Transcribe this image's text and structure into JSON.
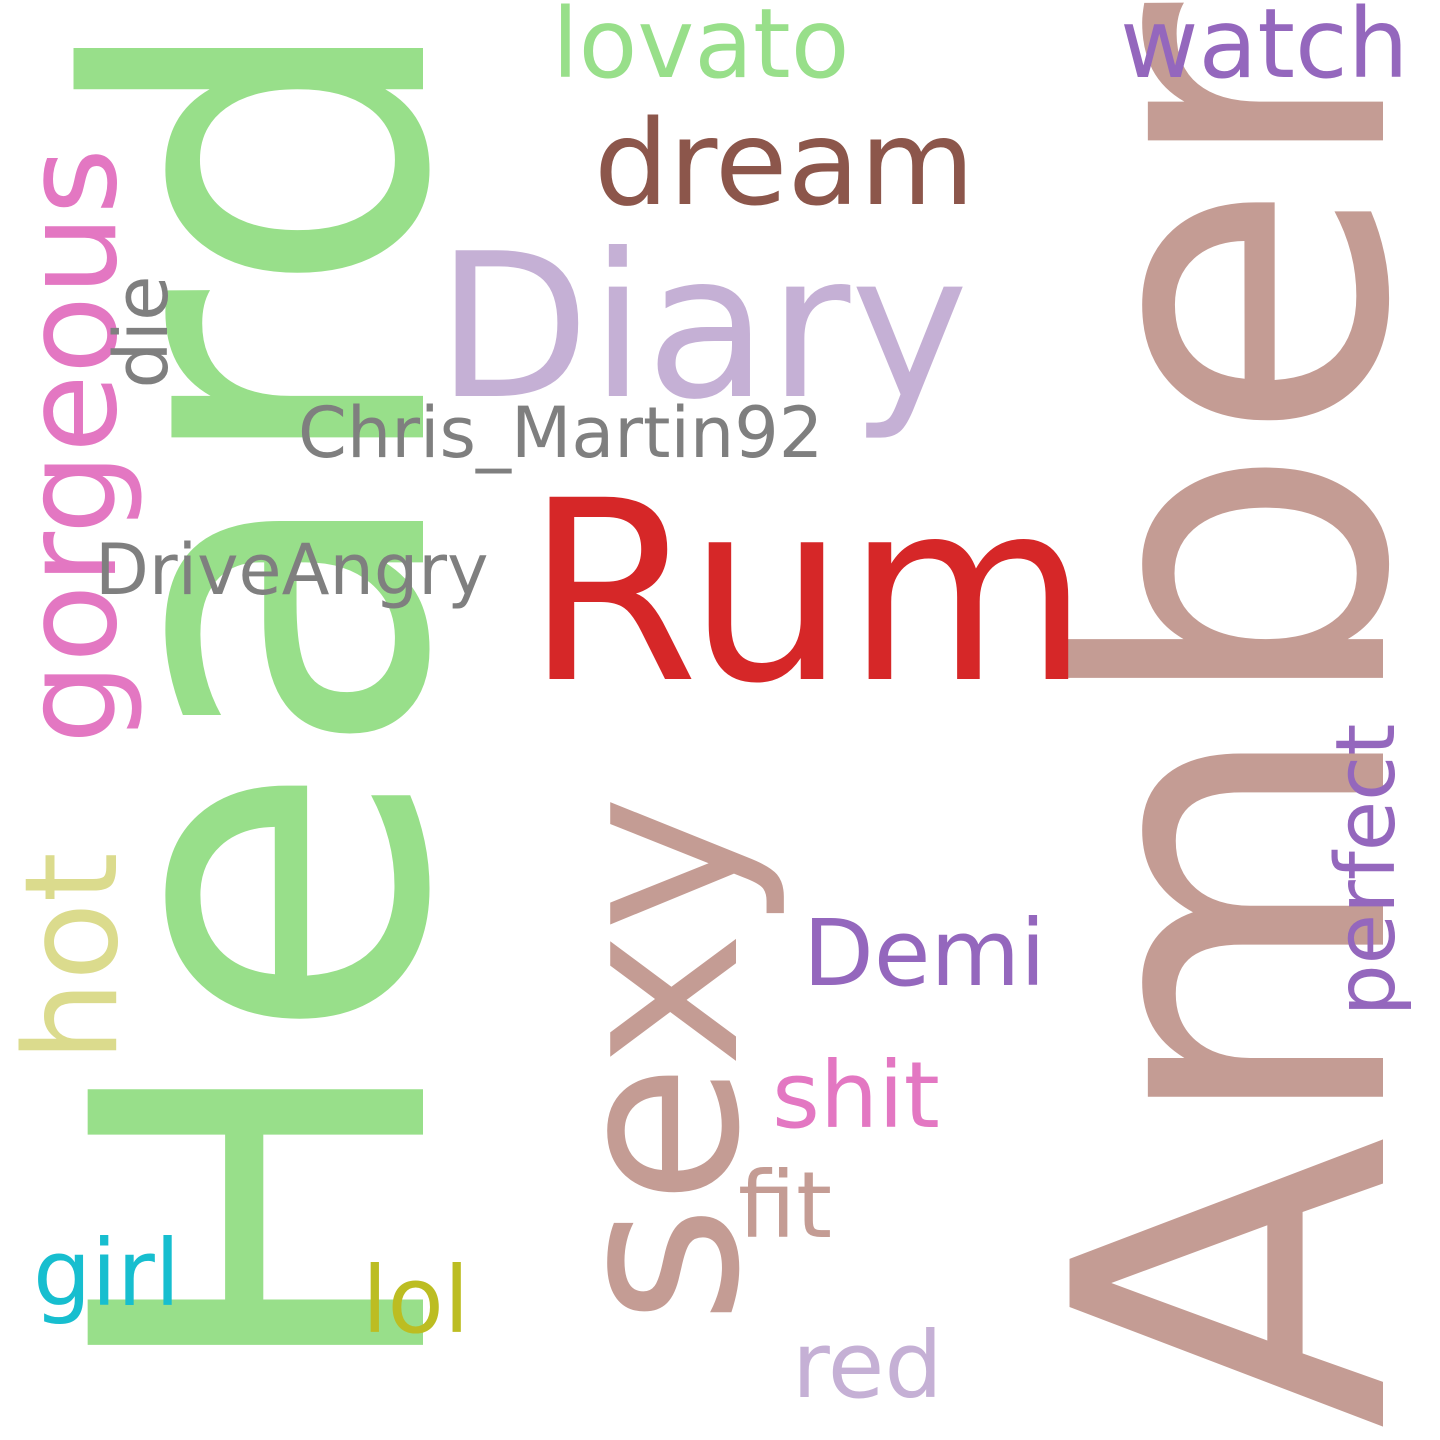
{
  "words": {
    "heard": {
      "text": "Heard",
      "color": "#98df8a"
    },
    "amber": {
      "text": "Amber",
      "color": "#c49c94"
    },
    "rum": {
      "text": "Rum",
      "color": "#d62728"
    },
    "sexy": {
      "text": "sexy",
      "color": "#c49c94"
    },
    "diary": {
      "text": "Diary",
      "color": "#c5b0d5"
    },
    "gorgeous": {
      "text": "gorgeous",
      "color": "#e377c2"
    },
    "dream": {
      "text": "dream",
      "color": "#8c564b"
    },
    "lovato": {
      "text": "lovato",
      "color": "#98df8a"
    },
    "watch": {
      "text": "watch",
      "color": "#9467bd"
    },
    "die": {
      "text": "die",
      "color": "#7f7f7f"
    },
    "chris_martin92": {
      "text": "Chris_Martin92",
      "color": "#7f7f7f"
    },
    "driveangry": {
      "text": "DriveAngry",
      "color": "#7f7f7f"
    },
    "hot": {
      "text": "hot",
      "color": "#dbdb8d"
    },
    "demi": {
      "text": "Demi",
      "color": "#9467bd"
    },
    "perfect": {
      "text": "perfect",
      "color": "#9467bd"
    },
    "shit": {
      "text": "shit",
      "color": "#e377c2"
    },
    "fit": {
      "text": "fit",
      "color": "#c49c94"
    },
    "girl": {
      "text": "girl",
      "color": "#17becf"
    },
    "lol": {
      "text": "lol",
      "color": "#bcbd22"
    },
    "red": {
      "text": "red",
      "color": "#c5b0d5"
    }
  }
}
